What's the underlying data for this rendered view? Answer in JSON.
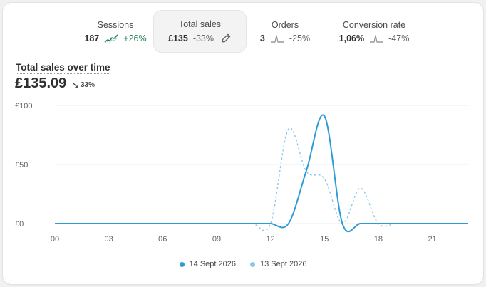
{
  "metrics": [
    {
      "label": "Sessions",
      "value": "187",
      "delta": "+26%",
      "trend": "up"
    },
    {
      "label": "Total sales",
      "value": "£135",
      "delta": "-33%",
      "trend": "down",
      "active": true
    },
    {
      "label": "Orders",
      "value": "3",
      "delta": "-25%",
      "trend": "down"
    },
    {
      "label": "Conversion rate",
      "value": "1,06%",
      "delta": "-47%",
      "trend": "down"
    }
  ],
  "summary": {
    "title": "Total sales over time",
    "value": "£135.09",
    "delta": "33%"
  },
  "colors": {
    "current": "#2e9bd6",
    "previous": "#8cc8ea",
    "positive": "#29845a",
    "grid": "#ececec"
  },
  "chart_data": {
    "type": "line",
    "x": [
      0,
      1,
      2,
      3,
      4,
      5,
      6,
      7,
      8,
      9,
      10,
      11,
      12,
      13,
      14,
      15,
      16,
      17,
      18,
      19,
      20,
      21,
      22,
      23
    ],
    "xticks": [
      "00",
      "03",
      "06",
      "09",
      "12",
      "15",
      "18",
      "21"
    ],
    "xtick_values": [
      0,
      3,
      6,
      9,
      12,
      15,
      18,
      21
    ],
    "yticks": [
      "£0",
      "£50",
      "£100"
    ],
    "ytick_values": [
      0,
      50,
      100
    ],
    "ylim": [
      0,
      100
    ],
    "xlim": [
      0,
      23
    ],
    "series": [
      {
        "name": "14 Sept 2026",
        "style": "solid",
        "values": [
          0,
          0,
          0,
          0,
          0,
          0,
          0,
          0,
          0,
          0,
          0,
          0,
          0,
          0,
          45,
          91,
          0,
          0,
          0,
          0,
          0,
          0,
          0,
          0
        ]
      },
      {
        "name": "13 Sept 2026",
        "style": "dashed",
        "values": [
          0,
          0,
          0,
          0,
          0,
          0,
          0,
          0,
          0,
          0,
          0,
          0,
          0,
          80,
          44,
          38,
          0,
          30,
          0,
          0,
          0,
          0,
          0,
          0
        ]
      }
    ]
  }
}
